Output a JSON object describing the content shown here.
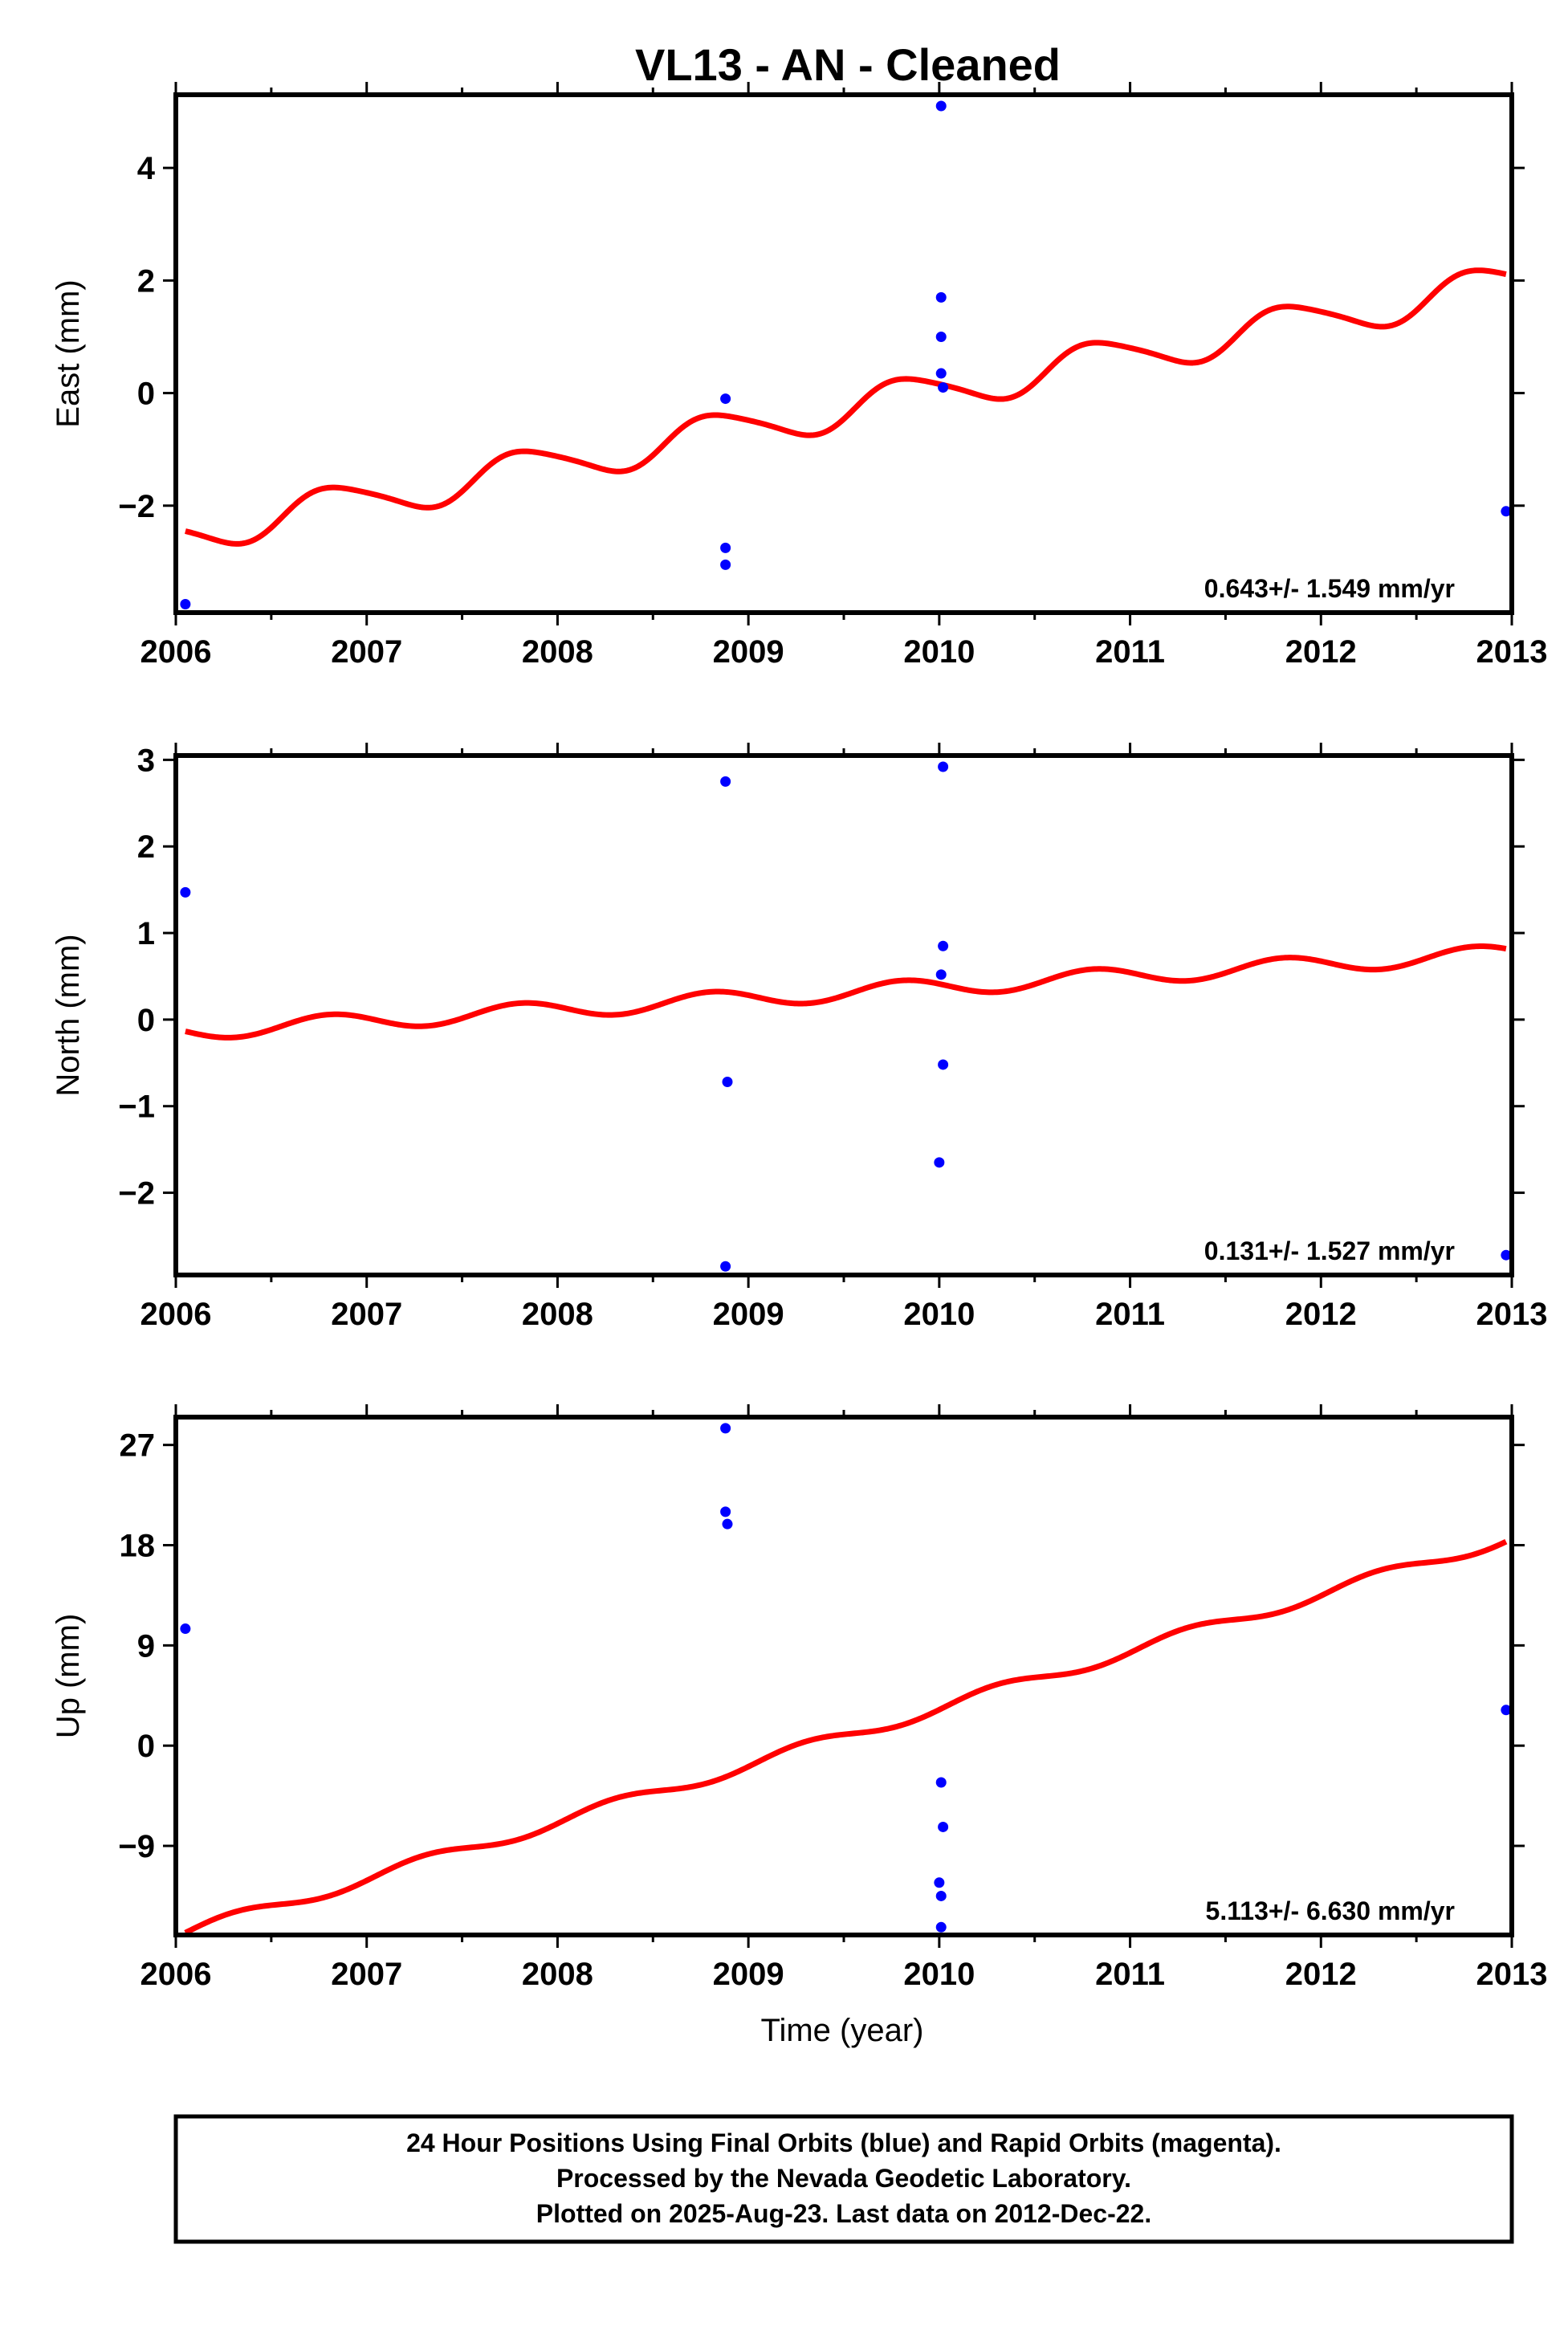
{
  "title": "VL13  - AN - Cleaned",
  "colors": {
    "final_orbits": "#0000ff",
    "model_curve": "#ff0000",
    "frame": "#000000"
  },
  "footer": {
    "line1": "24 Hour Positions Using Final Orbits (blue) and Rapid Orbits (magenta).",
    "line2": "Processed by the Nevada Geodetic Laboratory.",
    "line3": "Plotted on 2025-Aug-23. Last data on 2012-Dec-22."
  },
  "chart_data": [
    {
      "type": "scatter",
      "ylabel": "East (mm)",
      "xlabel": "",
      "xlim": [
        2006.0,
        2013.0
      ],
      "ylim": [
        -3.9,
        5.3
      ],
      "xticks": [
        "2006",
        "2007",
        "2008",
        "2009",
        "2010",
        "2011",
        "2012",
        "2013"
      ],
      "yticks": [
        "4",
        "2",
        "0",
        "−2"
      ],
      "ytick_values": [
        4,
        2,
        0,
        -2
      ],
      "rate_label": "0.643+/- 1.549 mm/yr",
      "series": [
        {
          "points": [
            [
              2006.05,
              -3.75
            ],
            [
              2008.88,
              -0.1
            ],
            [
              2008.88,
              -2.75
            ],
            [
              2008.88,
              -3.05
            ],
            [
              2010.01,
              5.1
            ],
            [
              2010.01,
              1.7
            ],
            [
              2010.01,
              1.0
            ],
            [
              2010.01,
              0.35
            ],
            [
              2010.02,
              0.1
            ],
            [
              2012.97,
              -2.1
            ]
          ]
        }
      ],
      "model": {
        "x0": 2006.05,
        "x1": 2012.97,
        "intercept": -2.5,
        "slope": 0.643,
        "amp_annual": 0.34,
        "phase_annual": 3.0,
        "amp_semiannual": 0.05,
        "phase_semiannual": 0.0
      }
    },
    {
      "type": "scatter",
      "ylabel": "North (mm)",
      "xlabel": "",
      "xlim": [
        2006.0,
        2013.0
      ],
      "ylim": [
        -2.95,
        3.05
      ],
      "xticks": [
        "2006",
        "2007",
        "2008",
        "2009",
        "2010",
        "2011",
        "2012",
        "2013"
      ],
      "yticks": [
        "3",
        "2",
        "1",
        "0",
        "−1",
        "−2"
      ],
      "ytick_values": [
        3,
        2,
        1,
        0,
        -1,
        -2
      ],
      "rate_label": "0.131+/- 1.527 mm/yr",
      "series": [
        {
          "points": [
            [
              2006.05,
              1.47
            ],
            [
              2008.88,
              2.75
            ],
            [
              2008.89,
              -0.72
            ],
            [
              2008.88,
              -2.85
            ],
            [
              2010.02,
              2.92
            ],
            [
              2010.02,
              0.85
            ],
            [
              2010.01,
              0.52
            ],
            [
              2010.02,
              -0.52
            ],
            [
              2010.0,
              -1.65
            ],
            [
              2012.97,
              -2.72
            ]
          ]
        }
      ],
      "model": {
        "x0": 2006.05,
        "x1": 2012.97,
        "intercept": -0.14,
        "slope": 0.131,
        "amp_annual": 0.1,
        "phase_annual": 3.1,
        "amp_semiannual": 0.0,
        "phase_semiannual": 0.0
      }
    },
    {
      "type": "scatter",
      "ylabel": "Up (mm)",
      "xlabel": "Time (year)",
      "xlim": [
        2006.0,
        2013.0
      ],
      "ylim": [
        -17.0,
        29.5
      ],
      "xticks": [
        "2006",
        "2007",
        "2008",
        "2009",
        "2010",
        "2011",
        "2012",
        "2013"
      ],
      "yticks": [
        "27",
        "18",
        "9",
        "0",
        "−9"
      ],
      "ytick_values": [
        27,
        18,
        9,
        0,
        -9
      ],
      "rate_label": "5.113+/- 6.630 mm/yr",
      "series": [
        {
          "points": [
            [
              2006.05,
              10.5
            ],
            [
              2008.88,
              28.5
            ],
            [
              2008.88,
              21.0
            ],
            [
              2008.89,
              19.9
            ],
            [
              2010.01,
              -3.3
            ],
            [
              2010.02,
              -7.3
            ],
            [
              2010.0,
              -12.3
            ],
            [
              2010.01,
              -13.5
            ],
            [
              2010.01,
              -16.3
            ],
            [
              2012.97,
              3.2
            ]
          ]
        }
      ],
      "model": {
        "x0": 2006.05,
        "x1": 2012.97,
        "intercept": -16.8,
        "slope": 5.113,
        "amp_annual": 0.55,
        "phase_annual": 0.0,
        "amp_semiannual": 0.0,
        "phase_semiannual": 0.0
      }
    }
  ]
}
